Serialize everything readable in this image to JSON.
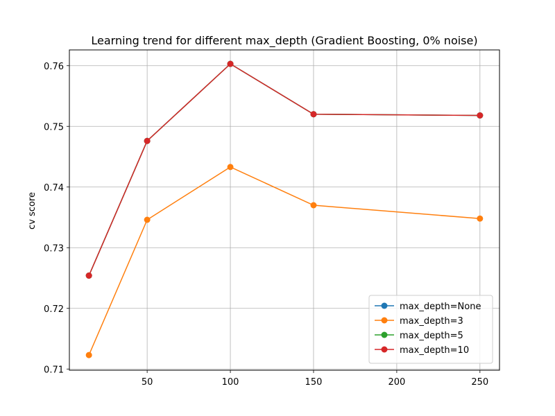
{
  "chart_data": {
    "type": "line",
    "title": "Learning trend for different max_depth (Gradient Boosting, 0% noise)",
    "xlabel": "",
    "ylabel": "cv score",
    "x": [
      15,
      50,
      100,
      150,
      250
    ],
    "xlim": [
      3.25,
      261.75
    ],
    "ylim": [
      0.7098,
      0.7626
    ],
    "xticks": [
      50,
      100,
      150,
      200,
      250
    ],
    "yticks": [
      0.71,
      0.72,
      0.73,
      0.74,
      0.75,
      0.76
    ],
    "ytick_labels": [
      "0.71",
      "0.72",
      "0.73",
      "0.74",
      "0.75",
      "0.76"
    ],
    "grid": true,
    "legend_position": "lower-right",
    "series": [
      {
        "name": "max_depth=None",
        "color": "#1f77b4",
        "values": [
          0.7254,
          0.7476,
          0.7603,
          0.752,
          0.7518
        ]
      },
      {
        "name": "max_depth=3",
        "color": "#ff7f0e",
        "values": [
          0.7123,
          0.7346,
          0.7433,
          0.737,
          0.7348
        ]
      },
      {
        "name": "max_depth=5",
        "color": "#2ca02c",
        "values": [
          0.7254,
          0.7476,
          0.7603,
          0.752,
          0.7518
        ]
      },
      {
        "name": "max_depth=10",
        "color": "#d62728",
        "values": [
          0.7254,
          0.7476,
          0.7603,
          0.752,
          0.7518
        ]
      }
    ]
  }
}
